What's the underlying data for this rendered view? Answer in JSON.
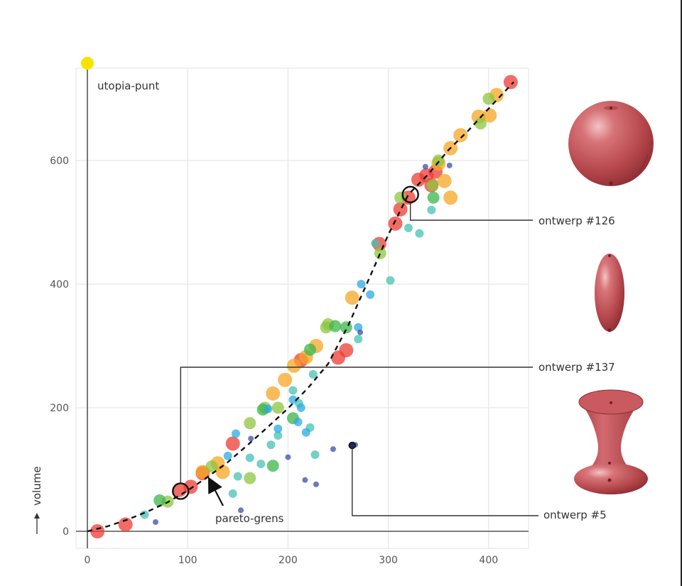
{
  "chart_data": {
    "type": "scatter",
    "title": "",
    "xlabel": "",
    "ylabel": "volume",
    "xlim": [
      -12,
      440
    ],
    "ylim": [
      -30,
      752
    ],
    "x_ticks": [
      "0",
      "100",
      "200",
      "300",
      "400"
    ],
    "x_tick_values": [
      0,
      100,
      200,
      300,
      400
    ],
    "y_ticks": [
      "0",
      "200",
      "400",
      "600"
    ],
    "y_tick_values": [
      0,
      200,
      400,
      600
    ],
    "grid": true,
    "utopia_point": {
      "label": "utopia-punt",
      "x": 0,
      "y": 752,
      "color": "#f5e400"
    },
    "pareto_front": {
      "label": "pareto-grens",
      "x": [
        0,
        20,
        40,
        60,
        80,
        100,
        120,
        140,
        160,
        180,
        200,
        220,
        240,
        260,
        280,
        300,
        320,
        340,
        360,
        380,
        400,
        425
      ],
      "y": [
        0,
        8,
        19,
        32,
        47,
        66,
        88,
        112,
        140,
        169,
        199,
        232,
        271,
        333,
        406,
        480,
        545,
        578,
        617,
        649,
        684,
        727
      ]
    },
    "series": [
      {
        "color": "#ee3b33",
        "size": "large",
        "points": [
          [
            10,
            0
          ],
          [
            38,
            11
          ],
          [
            92,
            67
          ],
          [
            103,
            72
          ],
          [
            115,
            94
          ],
          [
            145,
            142
          ],
          [
            213,
            277
          ],
          [
            250,
            281
          ],
          [
            258,
            293
          ],
          [
            291,
            465
          ],
          [
            307,
            498
          ],
          [
            312,
            521
          ],
          [
            320,
            540
          ],
          [
            330,
            569
          ],
          [
            338,
            576
          ],
          [
            347,
            582
          ],
          [
            343,
            560
          ],
          [
            422,
            727
          ]
        ]
      },
      {
        "color": "#f5a623",
        "size": "large",
        "points": [
          [
            115,
            96
          ],
          [
            130,
            110
          ],
          [
            135,
            96
          ],
          [
            185,
            223
          ],
          [
            197,
            245
          ],
          [
            206,
            268
          ],
          [
            218,
            282
          ],
          [
            228,
            300
          ],
          [
            264,
            378
          ],
          [
            350,
            595
          ],
          [
            356,
            567
          ],
          [
            362,
            540
          ],
          [
            362,
            620
          ],
          [
            372,
            641
          ],
          [
            390,
            671
          ],
          [
            401,
            673
          ],
          [
            408,
            706
          ]
        ]
      },
      {
        "color": "#8cc63f",
        "size": "medium",
        "points": [
          [
            80,
            48
          ],
          [
            124,
            105
          ],
          [
            162,
            86
          ],
          [
            162,
            175
          ],
          [
            177,
            200
          ],
          [
            190,
            200
          ],
          [
            238,
            330
          ],
          [
            240,
            335
          ],
          [
            292,
            450
          ],
          [
            312,
            540
          ],
          [
            344,
            560
          ],
          [
            350,
            600
          ],
          [
            392,
            660
          ],
          [
            400,
            700
          ]
        ]
      },
      {
        "color": "#3bb54a",
        "size": "medium",
        "points": [
          [
            72,
            50
          ],
          [
            175,
            197
          ],
          [
            205,
            183
          ],
          [
            222,
            294
          ],
          [
            247,
            332
          ],
          [
            258,
            330
          ],
          [
            345,
            540
          ],
          [
            185,
            106
          ]
        ]
      },
      {
        "color": "#45c2b1",
        "size": "small",
        "points": [
          [
            57,
            27
          ],
          [
            145,
            61
          ],
          [
            150,
            89
          ],
          [
            162,
            119
          ],
          [
            173,
            109
          ],
          [
            183,
            140
          ],
          [
            190,
            155
          ],
          [
            205,
            228
          ],
          [
            211,
            207
          ],
          [
            222,
            168
          ],
          [
            225,
            254
          ],
          [
            227,
            124
          ],
          [
            270,
            311
          ],
          [
            287,
            466
          ],
          [
            302,
            406
          ],
          [
            320,
            491
          ],
          [
            331,
            482
          ],
          [
            343,
            520
          ]
        ]
      },
      {
        "color": "#29abe2",
        "size": "small",
        "points": [
          [
            140,
            122
          ],
          [
            148,
            158
          ],
          [
            180,
            198
          ],
          [
            190,
            166
          ],
          [
            205,
            213
          ],
          [
            210,
            177
          ],
          [
            213,
            200
          ],
          [
            218,
            160
          ],
          [
            270,
            330
          ],
          [
            273,
            400
          ],
          [
            282,
            383
          ]
        ]
      },
      {
        "color": "#3b4fa8",
        "size": "tiny",
        "points": [
          [
            68,
            15
          ],
          [
            153,
            34
          ],
          [
            163,
            150
          ],
          [
            200,
            120
          ],
          [
            217,
            83
          ],
          [
            228,
            76
          ],
          [
            245,
            133
          ],
          [
            267,
            140
          ],
          [
            272,
            322
          ],
          [
            337,
            590
          ],
          [
            361,
            592
          ]
        ]
      }
    ],
    "highlighted_designs": [
      {
        "label": "ontwerp #126",
        "x": 322,
        "y": 545
      },
      {
        "label": "ontwerp #137",
        "x": 93,
        "y": 65
      },
      {
        "label": "ontwerp #5",
        "x": 264,
        "y": 139
      }
    ]
  }
}
